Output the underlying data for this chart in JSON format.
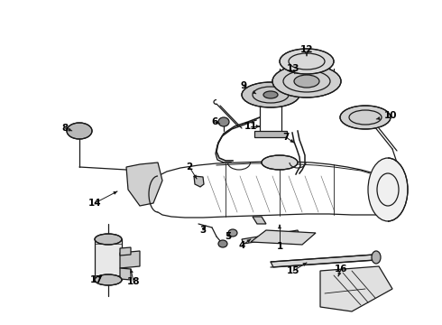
{
  "bg_color": "#ffffff",
  "lc": "#1a1a1a",
  "lw": 0.9,
  "figsize": [
    4.9,
    3.6
  ],
  "dpi": 100,
  "label_fs": 7.5
}
